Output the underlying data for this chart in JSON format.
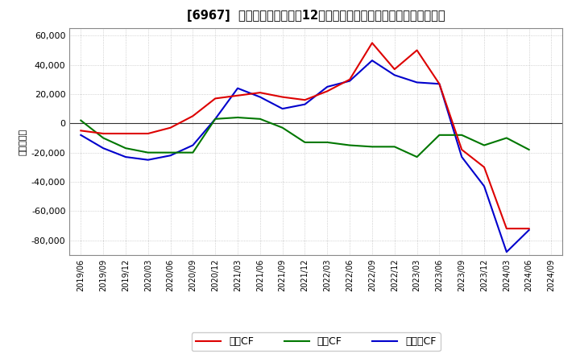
{
  "title": "[6967]  キャッシュフローの12か月移動合計の対前年同期増減額の推移",
  "ylabel": "（百万円）",
  "background_color": "#ffffff",
  "plot_bg_color": "#ffffff",
  "grid_color": "#aaaaaa",
  "dates": [
    "2019/06",
    "2019/09",
    "2019/12",
    "2020/03",
    "2020/06",
    "2020/09",
    "2020/12",
    "2021/03",
    "2021/06",
    "2021/09",
    "2021/12",
    "2022/03",
    "2022/06",
    "2022/09",
    "2022/12",
    "2023/03",
    "2023/06",
    "2023/09",
    "2023/12",
    "2024/03",
    "2024/06",
    "2024/09"
  ],
  "operating_cf": [
    -5000,
    -7000,
    -7000,
    -7000,
    -3000,
    5000,
    17000,
    19000,
    21000,
    18000,
    16000,
    22000,
    30000,
    55000,
    37000,
    50000,
    27000,
    -18000,
    -30000,
    -72000,
    -72000,
    null
  ],
  "investing_cf": [
    2000,
    -10000,
    -17000,
    -20000,
    -20000,
    -20000,
    3000,
    4000,
    3000,
    -3000,
    -13000,
    -13000,
    -15000,
    -16000,
    -16000,
    -23000,
    -8000,
    -8000,
    -15000,
    -10000,
    -18000,
    null
  ],
  "free_cf": [
    -8000,
    -17000,
    -23000,
    -25000,
    -22000,
    -15000,
    3000,
    24000,
    18000,
    10000,
    13000,
    25000,
    29000,
    43000,
    33000,
    28000,
    27000,
    -23000,
    -43000,
    -88000,
    -73000,
    null
  ],
  "ylim": [
    -90000,
    65000
  ],
  "yticks": [
    -80000,
    -60000,
    -40000,
    -20000,
    0,
    20000,
    40000,
    60000
  ],
  "line_colors": {
    "operating": "#dd0000",
    "investing": "#007700",
    "free": "#0000cc"
  },
  "legend_labels": [
    "営業CF",
    "投資CF",
    "フリーCF"
  ]
}
